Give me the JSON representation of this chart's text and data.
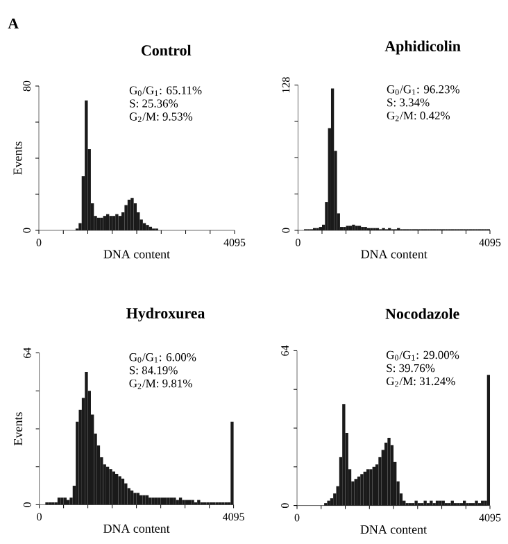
{
  "chart_data": [
    {
      "type": "histogram",
      "title": "Control",
      "xlabel": "DNA content",
      "ylabel": "Events",
      "color": "#1a1a1a",
      "annotations": [
        "A",
        "G$_{0}$/G$_{1}$: 65.11%",
        "S: 25.36%",
        "G$_{2}$/M: 9.53%"
      ],
      "bins": [
        768,
        832,
        896,
        960,
        1024,
        1088,
        1152,
        1216,
        1280,
        1344,
        1408,
        1472,
        1536,
        1600,
        1664,
        1728,
        1792,
        1856,
        1920,
        1984,
        2048,
        2112,
        2176,
        2240,
        2304,
        2368,
        2432,
        2496
      ],
      "values": [
        1,
        4,
        30,
        72,
        45,
        15,
        8,
        7,
        7,
        8,
        9,
        8,
        8,
        9,
        8,
        10,
        14,
        17,
        18,
        15,
        10,
        6,
        4,
        3,
        2,
        1,
        1
      ],
      "xlim": [
        0,
        4095
      ],
      "ylim": [
        0,
        80
      ],
      "xticks": [
        0,
        {
          "value": 512,
          "label": null
        },
        {
          "value": 1024,
          "label": null
        },
        {
          "value": 1536,
          "label": null
        },
        {
          "value": 2048,
          "label": null
        },
        {
          "value": 2560,
          "label": null
        },
        {
          "value": 3072,
          "label": null
        },
        {
          "value": 3584,
          "label": null
        },
        4095
      ],
      "yticks": [
        0,
        {
          "value": 20,
          "label": null
        },
        {
          "value": 40,
          "label": null
        },
        {
          "value": 60,
          "label": null
        },
        80
      ]
    },
    {
      "type": "histogram",
      "title": "Aphidicolin",
      "xlabel": "DNA content",
      "color": "#1a1a1a",
      "annotations": [
        "G$_{0}$/G$_{1}$: 96.23%",
        "S: 3.34%",
        "G$_{2}$/M: 0.42%"
      ],
      "bins": [
        128,
        192,
        256,
        320,
        384,
        448,
        512,
        576,
        640,
        704,
        768,
        832,
        896,
        960,
        1024,
        1088,
        1152,
        1216,
        1280,
        1344,
        1408,
        1472,
        1536,
        1600,
        1664,
        1728,
        1792,
        1856,
        1920,
        1984,
        2048,
        2112,
        2176,
        2240,
        2304,
        2368,
        2432,
        2496,
        2560,
        2624,
        2688,
        2752,
        2816,
        2880,
        2944,
        3008,
        3072,
        3136,
        3200,
        3264,
        3328,
        3392,
        3456,
        3520,
        3584,
        3648,
        3712,
        3776,
        3840,
        3904,
        3968,
        4032,
        4095
      ],
      "values": [
        1,
        1,
        1,
        2,
        2,
        3,
        5,
        25,
        90,
        125,
        70,
        15,
        3,
        3,
        4,
        4,
        5,
        4,
        4,
        3,
        3,
        2,
        2,
        2,
        2,
        1,
        2,
        1,
        2,
        1,
        1,
        2,
        1,
        1,
        1,
        1,
        1,
        1,
        1,
        1,
        1,
        1,
        1,
        1,
        1,
        1,
        1,
        1,
        1,
        1,
        1,
        1,
        1,
        1,
        1,
        1,
        1,
        1,
        1,
        1,
        1,
        1
      ],
      "xlim": [
        0,
        4095
      ],
      "ylim": [
        0,
        128
      ],
      "xticks": [
        0,
        {
          "value": 512,
          "label": null
        },
        {
          "value": 1024,
          "label": null
        },
        {
          "value": 1536,
          "label": null
        },
        {
          "value": 2048,
          "label": null
        },
        {
          "value": 2560,
          "label": null
        },
        {
          "value": 3072,
          "label": null
        },
        {
          "value": 3584,
          "label": null
        },
        4095
      ],
      "yticks": [
        0,
        {
          "value": 32,
          "label": null
        },
        {
          "value": 64,
          "label": null
        },
        {
          "value": 96,
          "label": null
        },
        128
      ]
    },
    {
      "type": "histogram",
      "title": "Hydroxurea",
      "xlabel": "DNA content",
      "ylabel": "Events",
      "color": "#1a1a1a",
      "annotations": [
        "G$_{0}$/G$_{1}$: 6.00%",
        "S: 84.19%",
        "G$_{2}$/M: 9.81%"
      ],
      "bins": [
        128,
        192,
        256,
        320,
        384,
        448,
        512,
        576,
        640,
        704,
        768,
        832,
        896,
        960,
        1024,
        1088,
        1152,
        1216,
        1280,
        1344,
        1408,
        1472,
        1536,
        1600,
        1664,
        1728,
        1792,
        1856,
        1920,
        1984,
        2048,
        2112,
        2176,
        2240,
        2304,
        2368,
        2432,
        2496,
        2560,
        2624,
        2688,
        2752,
        2816,
        2880,
        2944,
        3008,
        3072,
        3136,
        3200,
        3264,
        3328,
        3392,
        3456,
        3520,
        3584,
        3648,
        3712,
        3776,
        3840,
        3904,
        3968,
        4032,
        4095
      ],
      "values": [
        1,
        1,
        1,
        1,
        3,
        3,
        3,
        2,
        3,
        8,
        35,
        40,
        45,
        56,
        48,
        38,
        30,
        25,
        20,
        17,
        16,
        15,
        14,
        13,
        12,
        11,
        9,
        7,
        6,
        5,
        5,
        4,
        4,
        4,
        3,
        3,
        3,
        3,
        3,
        3,
        3,
        3,
        3,
        2,
        3,
        2,
        2,
        2,
        2,
        1,
        2,
        1,
        1,
        1,
        1,
        1,
        1,
        1,
        1,
        1,
        1,
        35
      ],
      "xlim": [
        0,
        4095
      ],
      "ylim": [
        0,
        64
      ],
      "xticks": [
        0,
        {
          "value": 512,
          "label": null
        },
        {
          "value": 1024,
          "label": null
        },
        {
          "value": 1536,
          "label": null
        },
        {
          "value": 2048,
          "label": null
        },
        {
          "value": 2560,
          "label": null
        },
        {
          "value": 3072,
          "label": null
        },
        {
          "value": 3584,
          "label": null
        },
        4095
      ],
      "yticks": [
        0,
        {
          "value": 16,
          "label": null
        },
        {
          "value": 32,
          "label": null
        },
        {
          "value": 48,
          "label": null
        },
        64
      ]
    },
    {
      "type": "histogram",
      "title": "Nocodazole",
      "xlabel": "DNA content",
      "color": "#1a1a1a",
      "annotations": [
        "G$_{0}$/G$_{1}$: 29.00%",
        "S: 39.76%",
        "G$_{2}$/M: 31.24%"
      ],
      "bins": [
        576,
        640,
        704,
        768,
        832,
        896,
        960,
        1024,
        1088,
        1152,
        1216,
        1280,
        1344,
        1408,
        1472,
        1536,
        1600,
        1664,
        1728,
        1792,
        1856,
        1920,
        1984,
        2048,
        2112,
        2176,
        2240,
        2304,
        2368,
        2432,
        2496,
        2560,
        2624,
        2688,
        2752,
        2816,
        2880,
        2944,
        3008,
        3072,
        3136,
        3200,
        3264,
        3328,
        3392,
        3456,
        3520,
        3584,
        3648,
        3712,
        3776,
        3840,
        3904,
        3968,
        4032,
        4095
      ],
      "values": [
        1,
        2,
        3,
        5,
        8,
        20,
        42,
        30,
        15,
        10,
        11,
        12,
        13,
        14,
        15,
        15,
        16,
        17,
        20,
        23,
        26,
        28,
        25,
        18,
        10,
        5,
        2,
        1,
        1,
        1,
        2,
        1,
        1,
        2,
        1,
        2,
        1,
        2,
        2,
        2,
        1,
        1,
        2,
        1,
        1,
        1,
        2,
        1,
        1,
        1,
        2,
        1,
        2,
        2,
        54
      ],
      "xlim": [
        0,
        4095
      ],
      "ylim": [
        0,
        64
      ],
      "xticks": [
        0,
        {
          "value": 512,
          "label": null
        },
        {
          "value": 1024,
          "label": null
        },
        {
          "value": 1536,
          "label": null
        },
        {
          "value": 2048,
          "label": null
        },
        {
          "value": 2560,
          "label": null
        },
        {
          "value": 3072,
          "label": null
        },
        {
          "value": 3584,
          "label": null
        },
        4095
      ],
      "yticks": [
        0,
        {
          "value": 16,
          "label": null
        },
        {
          "value": 32,
          "label": null
        },
        {
          "value": 48,
          "label": null
        },
        64
      ]
    }
  ]
}
